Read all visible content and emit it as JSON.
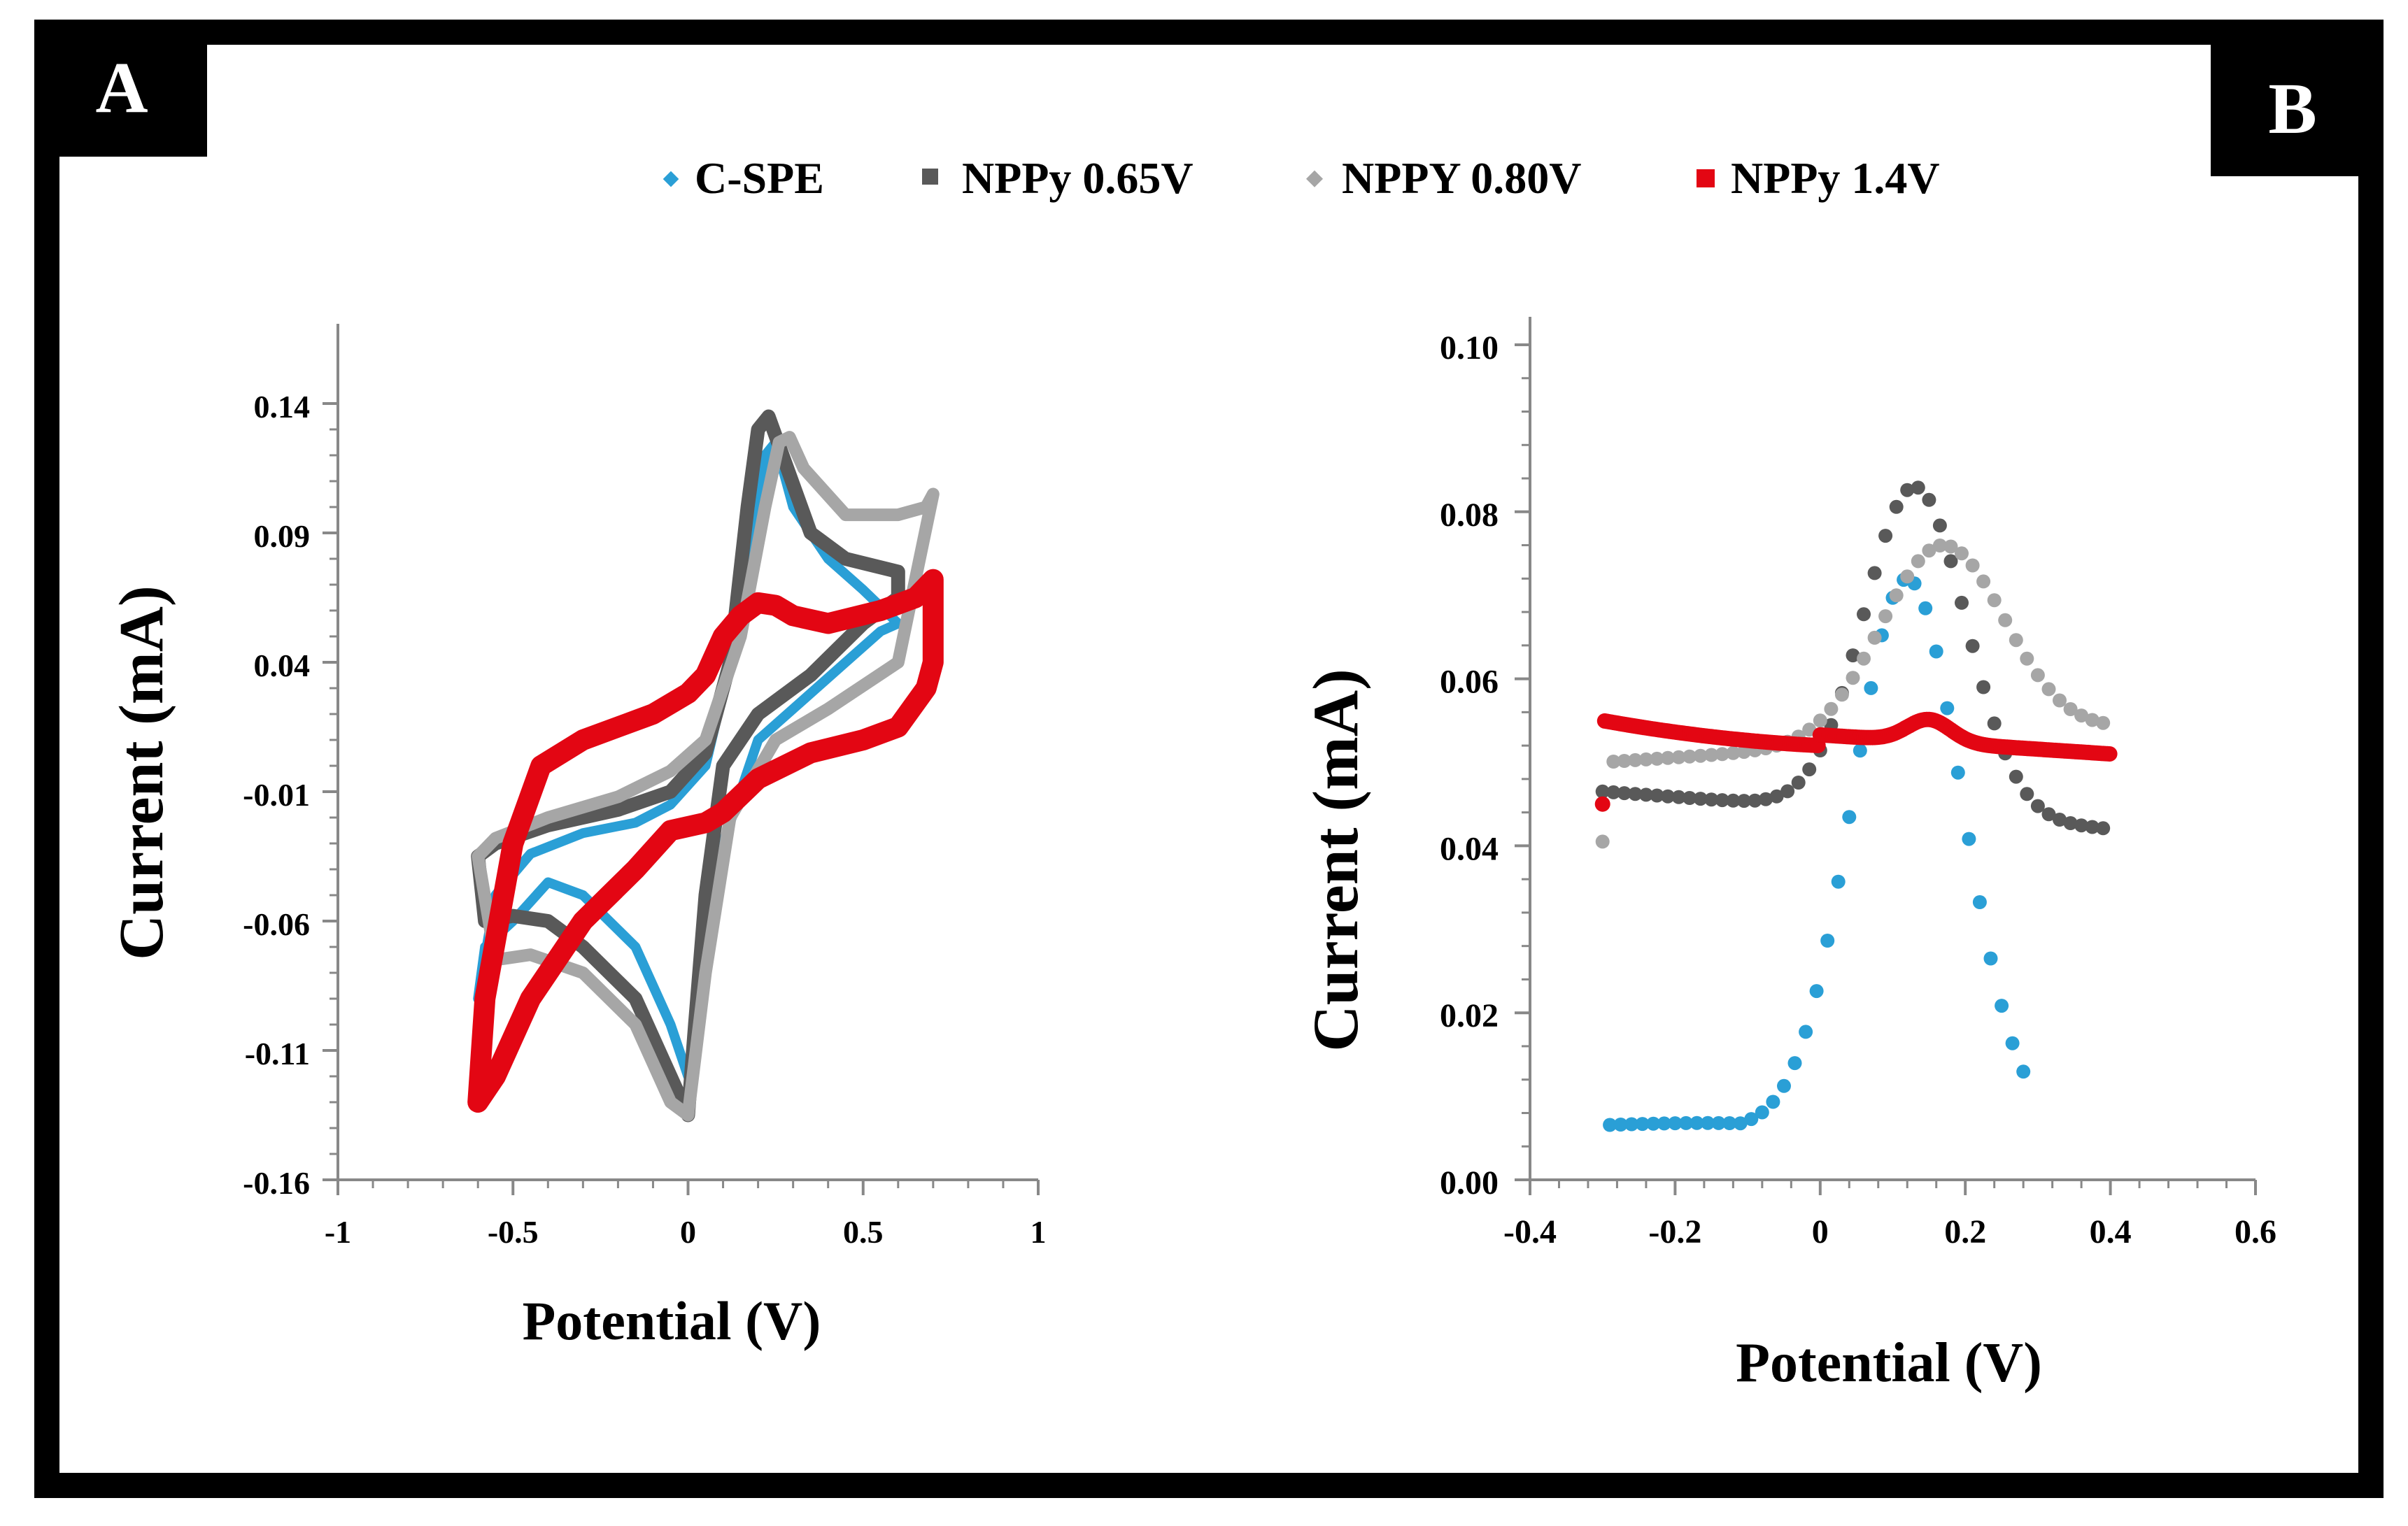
{
  "panels": {
    "a_label": "A",
    "b_label": "B"
  },
  "legend": [
    {
      "label": "C-SPE",
      "color": "#2a9fd6",
      "marker": "diamond"
    },
    {
      "label": "NPPy 0.65V",
      "color": "#595959",
      "marker": "square"
    },
    {
      "label": "NPPY 0.80V",
      "color": "#a6a6a6",
      "marker": "diamond"
    },
    {
      "label": "NPPy 1.4V",
      "color": "#e30613",
      "marker": "square"
    }
  ],
  "chart_data": [
    {
      "panel": "A",
      "type": "line",
      "xlabel": "Potential (V)",
      "ylabel": "Current (mA)",
      "xlim": [
        -1,
        1
      ],
      "ylim": [
        -0.16,
        0.16
      ],
      "xticks": [
        -1,
        -0.5,
        0,
        0.5,
        1
      ],
      "xtick_labels": [
        "-1",
        "-0.5",
        "0",
        "0.5",
        "1"
      ],
      "yticks": [
        -0.16,
        -0.11,
        -0.06,
        -0.01,
        0.04,
        0.09,
        0.14
      ],
      "ytick_labels": [
        "-0.16",
        "-0.11",
        "-0.06",
        "-0.01",
        "0.04",
        "0.09",
        "0.14"
      ],
      "series": [
        {
          "name": "C-SPE",
          "color": "#2a9fd6",
          "x": [
            -0.6,
            -0.55,
            -0.45,
            -0.3,
            -0.15,
            -0.05,
            0.05,
            0.12,
            0.18,
            0.22,
            0.25,
            0.3,
            0.4,
            0.5,
            0.6,
            0.55,
            0.45,
            0.3,
            0.2,
            0.1,
            0.05,
            0.0,
            -0.05,
            -0.15,
            -0.3,
            -0.4,
            -0.5,
            -0.58,
            -0.6
          ],
          "y": [
            -0.09,
            -0.05,
            -0.034,
            -0.026,
            -0.022,
            -0.015,
            0.0,
            0.04,
            0.09,
            0.12,
            0.125,
            0.1,
            0.08,
            0.068,
            0.055,
            0.052,
            0.04,
            0.022,
            0.01,
            -0.03,
            -0.07,
            -0.12,
            -0.1,
            -0.07,
            -0.05,
            -0.045,
            -0.06,
            -0.07,
            -0.09
          ]
        },
        {
          "name": "NPPy 0.65V",
          "color": "#595959",
          "x": [
            -0.6,
            -0.55,
            -0.4,
            -0.2,
            -0.05,
            0.05,
            0.12,
            0.17,
            0.2,
            0.23,
            0.27,
            0.35,
            0.45,
            0.6,
            0.6,
            0.5,
            0.35,
            0.2,
            0.1,
            0.05,
            0.02,
            0.0,
            -0.05,
            -0.15,
            -0.3,
            -0.4,
            -0.5,
            -0.58,
            -0.6
          ],
          "y": [
            -0.035,
            -0.03,
            -0.023,
            -0.017,
            -0.01,
            0.005,
            0.04,
            0.1,
            0.13,
            0.135,
            0.12,
            0.09,
            0.08,
            0.075,
            0.065,
            0.055,
            0.035,
            0.02,
            0.0,
            -0.05,
            -0.1,
            -0.135,
            -0.12,
            -0.09,
            -0.07,
            -0.06,
            -0.058,
            -0.06,
            -0.035
          ]
        },
        {
          "name": "NPPY 0.80V",
          "color": "#a6a6a6",
          "x": [
            -0.6,
            -0.55,
            -0.4,
            -0.2,
            -0.05,
            0.05,
            0.15,
            0.22,
            0.26,
            0.29,
            0.33,
            0.45,
            0.6,
            0.68,
            0.7,
            0.6,
            0.4,
            0.25,
            0.12,
            0.05,
            0.0,
            -0.05,
            -0.15,
            -0.3,
            -0.45,
            -0.55,
            -0.6
          ],
          "y": [
            -0.035,
            -0.028,
            -0.02,
            -0.012,
            -0.002,
            0.01,
            0.05,
            0.1,
            0.125,
            0.127,
            0.115,
            0.097,
            0.097,
            0.1,
            0.105,
            0.04,
            0.022,
            0.01,
            -0.02,
            -0.08,
            -0.135,
            -0.13,
            -0.1,
            -0.08,
            -0.073,
            -0.075,
            -0.035
          ]
        },
        {
          "name": "NPPy 1.4V",
          "color": "#e30613",
          "x": [
            -0.6,
            -0.58,
            -0.5,
            -0.42,
            -0.3,
            -0.1,
            0.0,
            0.05,
            0.1,
            0.15,
            0.2,
            0.25,
            0.3,
            0.4,
            0.55,
            0.65,
            0.7,
            0.7,
            0.68,
            0.6,
            0.5,
            0.35,
            0.2,
            0.1,
            0.05,
            -0.05,
            -0.15,
            -0.3,
            -0.45,
            -0.55,
            -0.6
          ],
          "y": [
            -0.13,
            -0.09,
            -0.03,
            0.0,
            0.01,
            0.02,
            0.028,
            0.035,
            0.05,
            0.058,
            0.063,
            0.062,
            0.058,
            0.055,
            0.06,
            0.065,
            0.072,
            0.04,
            0.03,
            0.015,
            0.01,
            0.005,
            -0.005,
            -0.018,
            -0.022,
            -0.025,
            -0.04,
            -0.06,
            -0.09,
            -0.12,
            -0.13
          ]
        }
      ]
    },
    {
      "panel": "B",
      "type": "scatter",
      "xlabel": "Potential (V)",
      "ylabel": "Current (mA)",
      "xlim": [
        -0.4,
        0.6
      ],
      "ylim": [
        0.0,
        0.1
      ],
      "xticks": [
        -0.4,
        -0.2,
        0,
        0.2,
        0.4,
        0.6
      ],
      "xtick_labels": [
        "-0.4",
        "-0.2",
        "0",
        "0.2",
        "0.4",
        "0.6"
      ],
      "yticks": [
        0.0,
        0.02,
        0.04,
        0.06,
        0.08,
        0.1
      ],
      "ytick_labels": [
        "0.00",
        "0.02",
        "0.04",
        "0.06",
        "0.08",
        "0.10"
      ],
      "series": [
        {
          "name": "C-SPE",
          "color": "#2a9fd6",
          "x_range": [
            -0.29,
            0.29
          ],
          "baseline": 0.0062,
          "peak": 0.072,
          "center": 0.12,
          "width": 0.075,
          "left_floor": 0.0065
        },
        {
          "name": "NPPy 0.65V",
          "color": "#595959",
          "x_range": [
            -0.3,
            0.4
          ],
          "baseline_left": 0.0465,
          "baseline_right": 0.042,
          "peak": 0.083,
          "center": 0.13,
          "width": 0.07
        },
        {
          "name": "NPPY 0.80V",
          "color": "#a6a6a6",
          "x_range": [
            -0.3,
            0.4
          ],
          "baseline_left": 0.05,
          "baseline_right": 0.054,
          "peak": 0.076,
          "center": 0.17,
          "width": 0.085,
          "first_point": 0.0405
        },
        {
          "name": "NPPy 1.4V",
          "color": "#e30613",
          "x_range": [
            -0.3,
            0.4
          ],
          "baseline_left": 0.055,
          "baseline_right": 0.051,
          "peak": 0.055,
          "center": 0.15,
          "width": 0.03,
          "first_point": 0.045
        }
      ]
    }
  ]
}
